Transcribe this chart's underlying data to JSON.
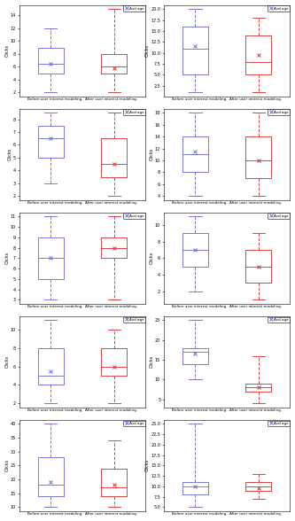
{
  "nrows": 5,
  "ncols": 2,
  "figsize": [
    3.33,
    5.88
  ],
  "dpi": 100,
  "blue_color": "#7777dd",
  "red_color": "#dd4444",
  "xlabel": "Before user interest modeling.  After user interest modeling.",
  "ylabel": "Clicks",
  "legend_label": "Avd age",
  "plots": [
    {
      "col": 0,
      "blue": {
        "whislo": 2,
        "q1": 5,
        "med": 6.5,
        "q3": 9,
        "whishi": 12,
        "mean": 6.5
      },
      "red": {
        "whislo": 2,
        "q1": 5,
        "med": 6,
        "q3": 8,
        "whishi": 15,
        "mean": 5.8
      }
    },
    {
      "col": 1,
      "blue": {
        "whislo": 1,
        "q1": 5,
        "med": 11,
        "q3": 16,
        "whishi": 20,
        "mean": 11.5
      },
      "red": {
        "whislo": 1,
        "q1": 5,
        "med": 8,
        "q3": 14,
        "whishi": 18,
        "mean": 9.5
      }
    },
    {
      "col": 0,
      "blue": {
        "whislo": 3,
        "q1": 5,
        "med": 6.5,
        "q3": 7.5,
        "whishi": 8.5,
        "mean": 6.5
      },
      "red": {
        "whislo": 2,
        "q1": 3.5,
        "med": 4.5,
        "q3": 6.5,
        "whishi": 8.5,
        "mean": 4.5
      }
    },
    {
      "col": 1,
      "blue": {
        "whislo": 4,
        "q1": 8,
        "med": 11,
        "q3": 14,
        "whishi": 18,
        "mean": 11.5
      },
      "red": {
        "whislo": 4,
        "q1": 7,
        "med": 10,
        "q3": 14,
        "whishi": 18,
        "mean": 10.0
      }
    },
    {
      "col": 0,
      "blue": {
        "whislo": 3,
        "q1": 5,
        "med": 7,
        "q3": 9,
        "whishi": 11,
        "mean": 7.0
      },
      "red": {
        "whislo": 3,
        "q1": 7,
        "med": 8,
        "q3": 9,
        "whishi": 11,
        "mean": 8.0
      }
    },
    {
      "col": 1,
      "blue": {
        "whislo": 2,
        "q1": 5,
        "med": 7,
        "q3": 9,
        "whishi": 11,
        "mean": 7.0
      },
      "red": {
        "whislo": 1,
        "q1": 3,
        "med": 5,
        "q3": 7,
        "whishi": 9,
        "mean": 5.0
      }
    },
    {
      "col": 0,
      "blue": {
        "whislo": 2,
        "q1": 4,
        "med": 5,
        "q3": 8,
        "whishi": 11,
        "mean": 5.5
      },
      "red": {
        "whislo": 2,
        "q1": 5,
        "med": 6,
        "q3": 8,
        "whishi": 10,
        "mean": 6.0
      }
    },
    {
      "col": 1,
      "blue": {
        "whislo": 10,
        "q1": 14,
        "med": 17,
        "q3": 18,
        "whishi": 25,
        "mean": 16.5
      },
      "red": {
        "whislo": 4,
        "q1": 7,
        "med": 8,
        "q3": 9,
        "whishi": 16,
        "mean": 8.0
      }
    },
    {
      "col": 0,
      "blue": {
        "whislo": 10,
        "q1": 14,
        "med": 18,
        "q3": 28,
        "whishi": 40,
        "mean": 19.0
      },
      "red": {
        "whislo": 10,
        "q1": 14,
        "med": 17,
        "q3": 24,
        "whishi": 34,
        "mean": 18.0
      }
    },
    {
      "col": 1,
      "blue": {
        "whislo": 5,
        "q1": 8,
        "med": 10,
        "q3": 11,
        "whishi": 25,
        "mean": 10.0
      },
      "red": {
        "whislo": 7,
        "q1": 9,
        "med": 10,
        "q3": 11,
        "whishi": 13,
        "mean": 9.5
      }
    }
  ]
}
